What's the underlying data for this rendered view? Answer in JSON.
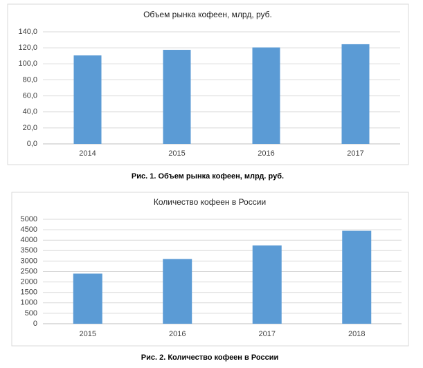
{
  "chart_data": [
    {
      "type": "bar",
      "title": "Объем рынка кофеен, млрд, руб.",
      "caption": "Рис. 1. Объем рынка кофеен, млрд. руб.",
      "categories": [
        "2014",
        "2015",
        "2016",
        "2017"
      ],
      "values": [
        110.5,
        117.5,
        120.5,
        124.5
      ],
      "color": "#5b9bd5",
      "ylim": [
        0,
        140
      ],
      "yticks": [
        {
          "value": 0,
          "label": "0,0"
        },
        {
          "value": 20,
          "label": "20,0"
        },
        {
          "value": 40,
          "label": "40,0"
        },
        {
          "value": 60,
          "label": "60,0"
        },
        {
          "value": 80,
          "label": "80,0"
        },
        {
          "value": 100,
          "label": "100,0"
        },
        {
          "value": 120,
          "label": "120,0"
        },
        {
          "value": 140,
          "label": "140,0"
        }
      ],
      "grid": true
    },
    {
      "type": "bar",
      "title": "Количество кофеен в России",
      "caption": "Рис. 2. Количество кофеен в России",
      "categories": [
        "2015",
        "2016",
        "2017",
        "2018"
      ],
      "values": [
        2400,
        3100,
        3750,
        4450
      ],
      "color": "#5b9bd5",
      "ylim": [
        0,
        5000
      ],
      "yticks": [
        0,
        500,
        1000,
        1500,
        2000,
        2500,
        3000,
        3500,
        4000,
        4500,
        5000
      ],
      "grid": true
    }
  ]
}
